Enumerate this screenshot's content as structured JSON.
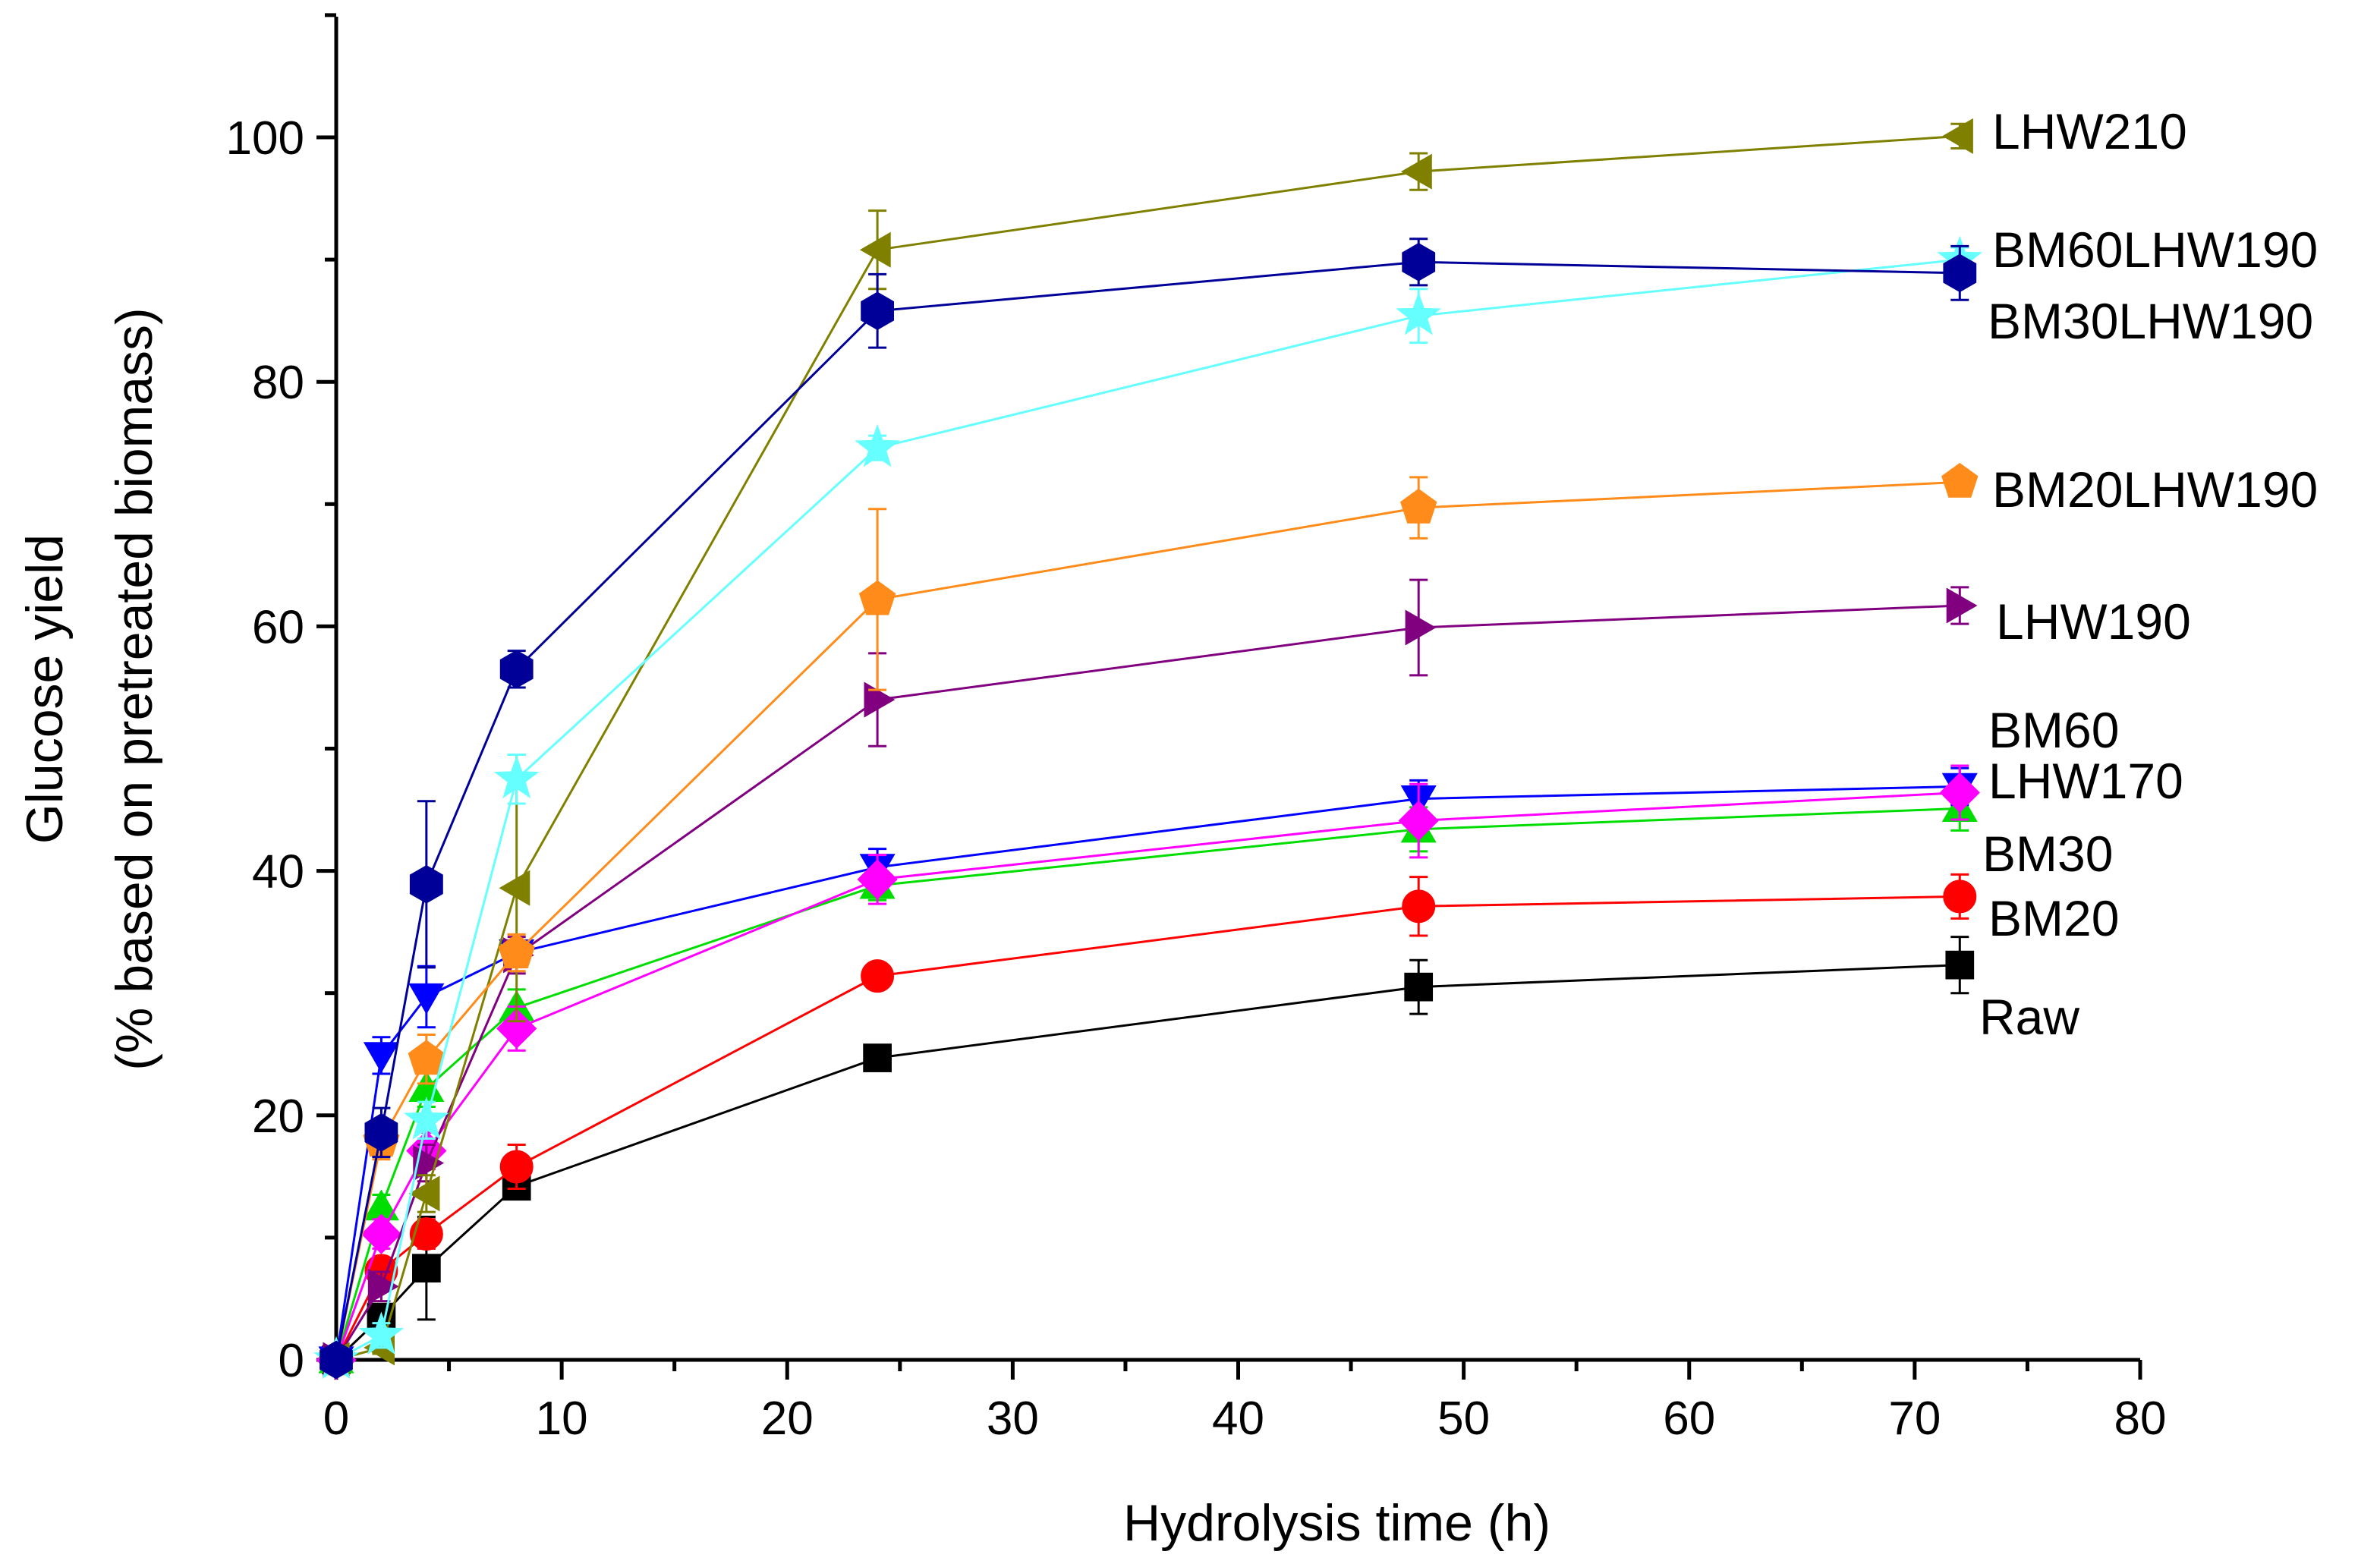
{
  "chart_data": {
    "type": "line",
    "title": "",
    "xlabel": "Hydrolysis time (h)",
    "ylabel_line1": "Glucose yield",
    "ylabel_line2": "(% based on pretreated biomass)",
    "xlim": [
      0,
      80
    ],
    "ylim": [
      0,
      110
    ],
    "xticks": [
      0,
      10,
      20,
      30,
      40,
      50,
      60,
      70,
      80
    ],
    "yticks": [
      0,
      20,
      40,
      60,
      80,
      100
    ],
    "grid": false,
    "legend": "inline labels at right",
    "series": [
      {
        "name": "Raw",
        "label": "Raw",
        "color": "#000000",
        "marker": "square",
        "x": [
          0,
          2,
          4,
          8,
          24,
          48,
          72
        ],
        "y": [
          0,
          3.5,
          7.5,
          14.2,
          24.7,
          30.5,
          32.3
        ],
        "err": [
          0,
          1.0,
          4.2,
          1.0,
          0.8,
          2.2,
          2.3
        ]
      },
      {
        "name": "BM20",
        "label": "BM20",
        "color": "#ff0000",
        "marker": "circle",
        "x": [
          0,
          2,
          4,
          8,
          24,
          48,
          72
        ],
        "y": [
          0,
          7.3,
          10.3,
          15.8,
          31.4,
          37.1,
          37.9
        ],
        "err": [
          0,
          1.0,
          1.2,
          1.8,
          0.8,
          2.4,
          1.8
        ]
      },
      {
        "name": "BM30",
        "label": "BM30",
        "color": "#00dd00",
        "marker": "triangle-up",
        "x": [
          0,
          2,
          4,
          8,
          24,
          48,
          72
        ],
        "y": [
          0,
          12.5,
          22.2,
          28.8,
          38.8,
          43.4,
          45.1
        ],
        "err": [
          0,
          1.0,
          1.5,
          1.5,
          1.2,
          1.8,
          1.8
        ]
      },
      {
        "name": "BM60",
        "label": "BM60",
        "color": "#0000ff",
        "marker": "triangle-down",
        "x": [
          0,
          2,
          4,
          8,
          24,
          48,
          72
        ],
        "y": [
          0,
          24.9,
          29.7,
          33.3,
          40.3,
          45.9,
          46.9
        ],
        "err": [
          0,
          1.5,
          2.5,
          1.0,
          1.5,
          1.5,
          1.5
        ]
      },
      {
        "name": "LHW170",
        "label": "LHW170",
        "color": "#ff00ff",
        "marker": "diamond",
        "x": [
          0,
          2,
          4,
          8,
          24,
          48,
          72
        ],
        "y": [
          0,
          10.3,
          17.1,
          27.1,
          39.3,
          44.1,
          46.4
        ],
        "err": [
          0,
          1.2,
          1.5,
          1.8,
          2.0,
          3.0,
          2.2
        ]
      },
      {
        "name": "LHW190",
        "label": "LHW190",
        "color": "#800080",
        "marker": "triangle-right",
        "x": [
          0,
          2,
          4,
          8,
          24,
          48,
          72
        ],
        "y": [
          0,
          6.0,
          16.1,
          33.1,
          54.0,
          59.9,
          61.7
        ],
        "err": [
          0,
          1.2,
          1.5,
          1.5,
          3.8,
          3.9,
          1.5
        ]
      },
      {
        "name": "LHW210",
        "label": "LHW210",
        "color": "#808000",
        "marker": "triangle-left",
        "x": [
          0,
          2,
          4,
          8,
          24,
          48,
          72
        ],
        "y": [
          0,
          1.0,
          13.6,
          38.6,
          90.8,
          97.2,
          100.1
        ],
        "err": [
          0,
          0.5,
          1.5,
          10.9,
          3.2,
          1.5,
          1.0
        ]
      },
      {
        "name": "BM20LHW190",
        "label": "BM20LHW190",
        "color": "#ff8c1a",
        "marker": "pentagon",
        "x": [
          0,
          2,
          4,
          8,
          24,
          48,
          72
        ],
        "y": [
          0,
          17.9,
          24.6,
          33.3,
          62.2,
          69.7,
          71.8
        ],
        "err": [
          0,
          1.5,
          2.0,
          1.5,
          7.4,
          2.5,
          1.0
        ]
      },
      {
        "name": "BM30LHW190",
        "label": "BM30LHW190",
        "color": "#66ffff",
        "marker": "star",
        "x": [
          0,
          2,
          4,
          8,
          24,
          48,
          72
        ],
        "y": [
          0,
          2.0,
          19.6,
          47.5,
          74.6,
          85.4,
          90.0
        ],
        "err": [
          0,
          1.0,
          1.5,
          2.0,
          1.0,
          2.2,
          1.0
        ]
      },
      {
        "name": "BM60LHW190",
        "label": "BM60LHW190",
        "color": "#000099",
        "marker": "hexagon",
        "x": [
          0,
          2,
          4,
          8,
          24,
          48,
          72
        ],
        "y": [
          0,
          18.6,
          38.9,
          56.5,
          85.8,
          89.8,
          88.9
        ],
        "err": [
          0,
          2.0,
          6.8,
          1.5,
          3.0,
          1.9,
          2.2
        ]
      }
    ]
  }
}
